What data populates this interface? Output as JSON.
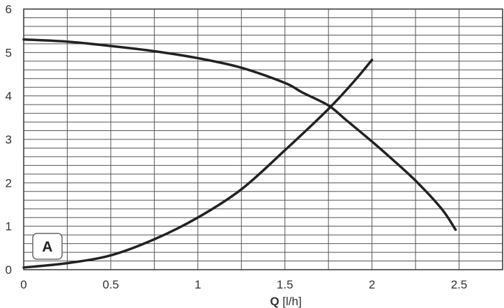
{
  "chart_data": {
    "type": "line",
    "title": "",
    "xlabel_symbol": "Q",
    "xlabel_unit": "[l/h]",
    "ylabel": "",
    "xlim": [
      0,
      2.75
    ],
    "ylim": [
      0,
      6
    ],
    "x_ticks": [
      0,
      0.5,
      1,
      1.5,
      2,
      2.5
    ],
    "x_tick_labels": [
      "0",
      "0.5",
      "1",
      "1.5",
      "2",
      "2.5"
    ],
    "y_ticks": [
      0,
      1,
      2,
      3,
      4,
      5,
      6
    ],
    "y_tick_labels": [
      "0",
      "1",
      "2",
      "3",
      "4",
      "5",
      "6"
    ],
    "grid": true,
    "badge": "A",
    "series": [
      {
        "x": [
          0,
          0.25,
          0.5,
          0.75,
          1.0,
          1.25,
          1.5,
          1.6,
          1.75,
          1.85,
          2.0,
          2.1,
          2.25,
          2.4,
          2.48
        ],
        "y": [
          5.3,
          5.25,
          5.15,
          5.03,
          4.87,
          4.65,
          4.3,
          4.08,
          3.78,
          3.45,
          2.95,
          2.6,
          2.05,
          1.4,
          0.92
        ]
      },
      {
        "x": [
          0,
          0.25,
          0.5,
          0.75,
          1.0,
          1.25,
          1.5,
          1.75,
          1.9,
          2.0
        ],
        "y": [
          0.05,
          0.15,
          0.33,
          0.7,
          1.2,
          1.85,
          2.75,
          3.7,
          4.35,
          4.83
        ]
      }
    ],
    "colors": {
      "curve": "#222222",
      "grid": "#555555",
      "frame": "#333333",
      "text": "#333333"
    }
  }
}
